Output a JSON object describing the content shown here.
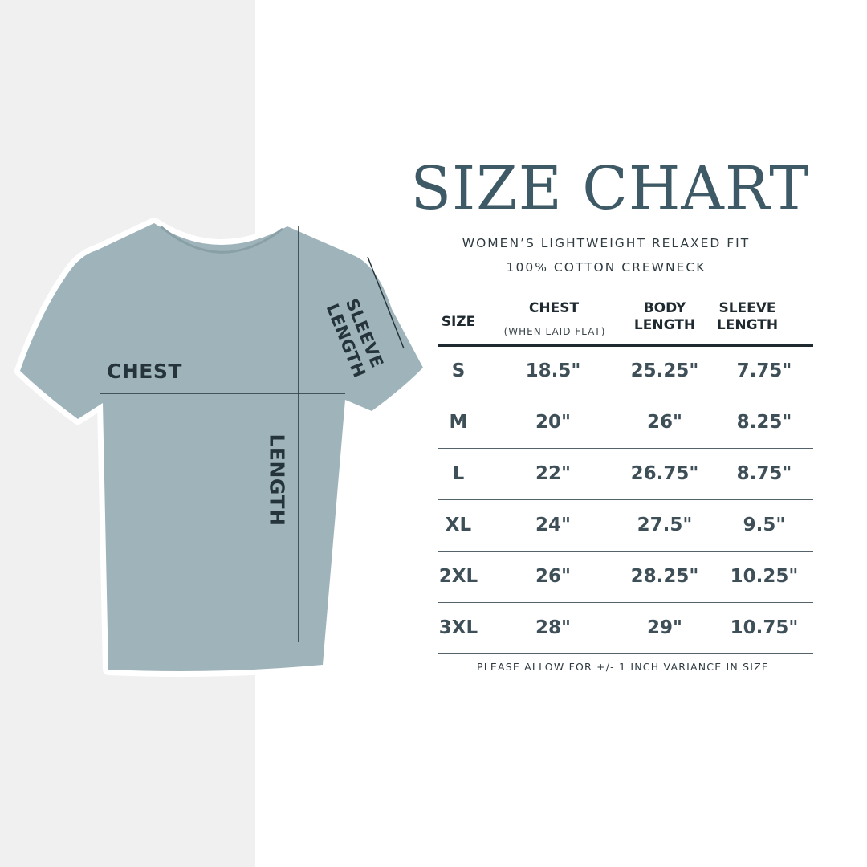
{
  "title": "SIZE CHART",
  "subtitle_lines": [
    "WOMEN’S LIGHTWEIGHT RELAXED FIT",
    "100% COTTON CREWNECK"
  ],
  "diagram_labels": {
    "chest": "CHEST",
    "length": "LENGTH",
    "sleeve_length": "SLEEVE LENGTH"
  },
  "colors": {
    "title": "#3e5a66",
    "shirt": "#9fb4ba",
    "text": "#3e4f58"
  },
  "table": {
    "headers": {
      "size": "SIZE",
      "chest": "CHEST",
      "chest_note": "(WHEN LAID FLAT)",
      "body_length_1": "BODY",
      "body_length_2": "LENGTH",
      "sleeve_length_1": "SLEEVE",
      "sleeve_length_2": "LENGTH"
    },
    "rows": [
      [
        "S",
        "18.5\"",
        "25.25\"",
        "7.75\""
      ],
      [
        "M",
        "20\"",
        "26\"",
        "8.25\""
      ],
      [
        "L",
        "22\"",
        "26.75\"",
        "8.75\""
      ],
      [
        "XL",
        "24\"",
        "27.5\"",
        "9.5\""
      ],
      [
        "2XL",
        "26\"",
        "28.25\"",
        "10.25\""
      ],
      [
        "3XL",
        "28\"",
        "29\"",
        "10.75\""
      ]
    ]
  },
  "footnote": "PLEASE ALLOW FOR +/- 1 INCH VARIANCE IN SIZE"
}
